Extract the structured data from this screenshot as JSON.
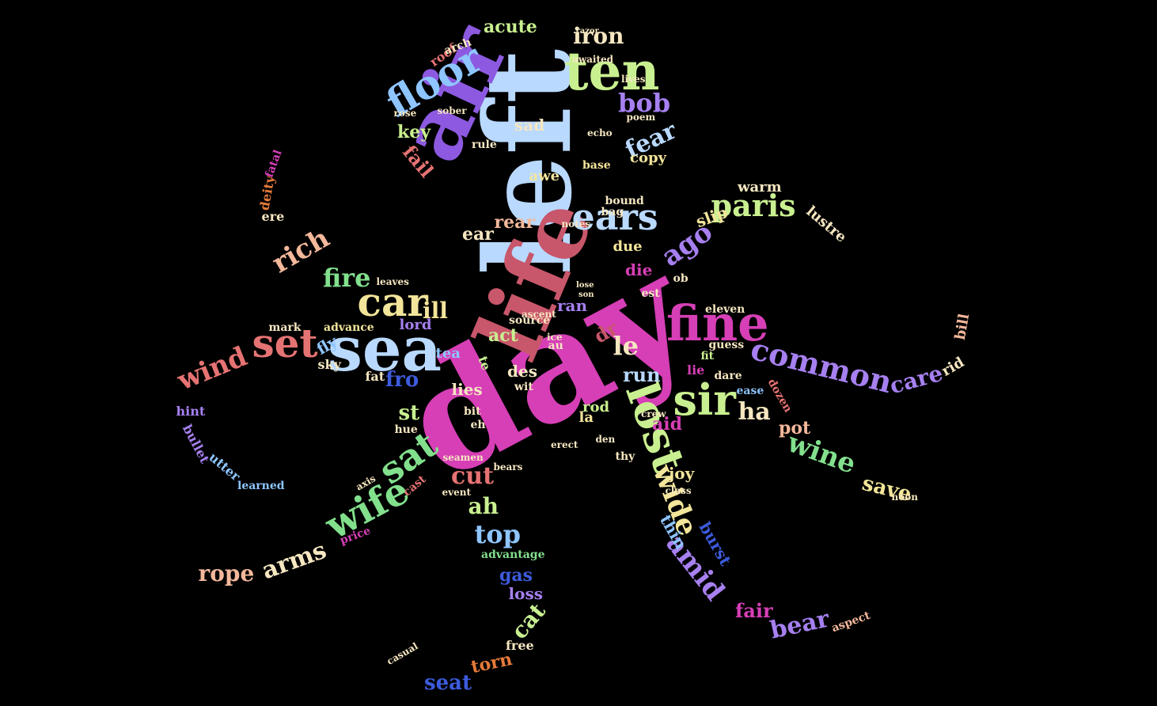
{
  "palette": {
    "pink": "#d63fb6",
    "rose": "#c8576b",
    "sky": "#b9d9ff",
    "purple": "#8d59e0",
    "lime": "#c9f090",
    "salmon": "#e67373",
    "lightblue": "#8ec5ff",
    "green": "#82e08d",
    "yellow": "#f3e59a",
    "violet": "#a680f0",
    "peach": "#f4b89b",
    "blue": "#3d5bdc",
    "cream": "#f6e7c1",
    "orange": "#e67a3a"
  },
  "words": [
    {
      "text": "day",
      "color": "#d63fb6"
    },
    {
      "text": "left",
      "color": "#b9d9ff"
    },
    {
      "text": "life",
      "color": "#c8576b"
    },
    {
      "text": "air",
      "color": "#8d59e0"
    },
    {
      "text": "ten",
      "color": "#c9f090"
    },
    {
      "text": "floor",
      "color": "#8ec5ff"
    },
    {
      "text": "sea",
      "color": "#b9d9ff"
    },
    {
      "text": "set",
      "color": "#e67373"
    },
    {
      "text": "fine",
      "color": "#d63fb6"
    },
    {
      "text": "sir",
      "color": "#c9f090"
    },
    {
      "text": "common",
      "color": "#a680f0"
    },
    {
      "text": "lost",
      "color": "#c9f090"
    },
    {
      "text": "sat",
      "color": "#82e08d"
    },
    {
      "text": "wife",
      "color": "#82e08d"
    },
    {
      "text": "car",
      "color": "#f3e59a"
    },
    {
      "text": "ears",
      "color": "#b9d9ff"
    },
    {
      "text": "paris",
      "color": "#c9f090"
    },
    {
      "text": "wind",
      "color": "#e67373"
    },
    {
      "text": "rich",
      "color": "#f4b89b"
    },
    {
      "text": "fire",
      "color": "#82e08d"
    },
    {
      "text": "ago",
      "color": "#a680f0"
    },
    {
      "text": "bob",
      "color": "#a680f0"
    },
    {
      "text": "fear",
      "color": "#b9d9ff"
    },
    {
      "text": "iron",
      "color": "#f6e7c1"
    },
    {
      "text": "acute",
      "color": "#c9f090"
    },
    {
      "text": "cut",
      "color": "#e67373"
    },
    {
      "text": "top",
      "color": "#8ec5ff"
    },
    {
      "text": "wide",
      "color": "#f3e59a"
    },
    {
      "text": "amid",
      "color": "#a680f0"
    },
    {
      "text": "rope",
      "color": "#f4b89b"
    },
    {
      "text": "arms",
      "color": "#f6e7c1"
    },
    {
      "text": "wine",
      "color": "#82e08d"
    },
    {
      "text": "ha",
      "color": "#f6e7c1"
    },
    {
      "text": "care",
      "color": "#a680f0"
    },
    {
      "text": "bear",
      "color": "#a680f0"
    },
    {
      "text": "fair",
      "color": "#d63fb6"
    },
    {
      "text": "seat",
      "color": "#3d5bdc"
    },
    {
      "text": "torn",
      "color": "#e67a3a"
    },
    {
      "text": "cat",
      "color": "#c9f090"
    },
    {
      "text": "gas",
      "color": "#3d5bdc"
    },
    {
      "text": "loss",
      "color": "#a680f0"
    },
    {
      "text": "ah",
      "color": "#c9f090"
    },
    {
      "text": "save",
      "color": "#f3e59a"
    },
    {
      "text": "st",
      "color": "#c9f090"
    },
    {
      "text": "fro",
      "color": "#3d5bdc"
    },
    {
      "text": "ill",
      "color": "#f3e59a"
    },
    {
      "text": "le",
      "color": "#f6e7c1"
    },
    {
      "text": "key",
      "color": "#c9f090"
    },
    {
      "text": "fail",
      "color": "#e67373"
    },
    {
      "text": "sad",
      "color": "#f6e7c1"
    },
    {
      "text": "ear",
      "color": "#f6e7c1"
    },
    {
      "text": "rear",
      "color": "#f4b89b"
    },
    {
      "text": "die",
      "color": "#d63fb6"
    },
    {
      "text": "run",
      "color": "#b9d9ff"
    },
    {
      "text": "aid",
      "color": "#d63fb6"
    },
    {
      "text": "act",
      "color": "#c9f090"
    },
    {
      "text": "des",
      "color": "#f6e7c1"
    },
    {
      "text": "lies",
      "color": "#f6e7c1"
    },
    {
      "text": "slip",
      "color": "#f3e59a"
    },
    {
      "text": "dr",
      "color": "#c8576b"
    },
    {
      "text": "pot",
      "color": "#f4b89b"
    },
    {
      "text": "rod",
      "color": "#c9f090"
    },
    {
      "text": "la",
      "color": "#f3e59a"
    },
    {
      "text": "ran",
      "color": "#a680f0"
    },
    {
      "text": "joy",
      "color": "#f3e59a"
    },
    {
      "text": "thin",
      "color": "#8ec5ff"
    },
    {
      "text": "burst",
      "color": "#3d5bdc"
    },
    {
      "text": "lord",
      "color": "#a680f0"
    },
    {
      "text": "due",
      "color": "#f3e59a"
    },
    {
      "text": "fly",
      "color": "#8ec5ff"
    },
    {
      "text": "tea",
      "color": "#8ec5ff"
    },
    {
      "text": "rid",
      "color": "#f6e7c1"
    },
    {
      "text": "bill",
      "color": "#f4b89b"
    },
    {
      "text": "lustre",
      "color": "#f6e7c1"
    },
    {
      "text": "warm",
      "color": "#f6e7c1"
    },
    {
      "text": "copy",
      "color": "#f3e59a"
    },
    {
      "text": "awe",
      "color": "#f3e59a"
    },
    {
      "text": "ere",
      "color": "#f6e7c1"
    },
    {
      "text": "deity",
      "color": "#e67a3a"
    },
    {
      "text": "fatal",
      "color": "#d63fb6"
    },
    {
      "text": "hint",
      "color": "#a680f0"
    },
    {
      "text": "bullet",
      "color": "#a680f0"
    },
    {
      "text": "utter",
      "color": "#8ec5ff"
    },
    {
      "text": "learned",
      "color": "#8ec5ff"
    },
    {
      "text": "sky",
      "color": "#f6e7c1"
    },
    {
      "text": "fat",
      "color": "#f6e7c1"
    },
    {
      "text": "mark",
      "color": "#f6e7c1"
    },
    {
      "text": "advance",
      "color": "#f3e59a"
    },
    {
      "text": "leaves",
      "color": "#f6e7c1"
    },
    {
      "text": "source",
      "color": "#f6e7c1"
    },
    {
      "text": "ascent",
      "color": "#f6e7c1"
    },
    {
      "text": "price",
      "color": "#d63fb6"
    },
    {
      "text": "advantage",
      "color": "#82e08d"
    },
    {
      "text": "free",
      "color": "#f6e7c1"
    },
    {
      "text": "casual",
      "color": "#f6e7c1"
    },
    {
      "text": "aspect",
      "color": "#f4b89b"
    },
    {
      "text": "dozen",
      "color": "#e67373"
    },
    {
      "text": "guess",
      "color": "#f6e7c1"
    },
    {
      "text": "eleven",
      "color": "#f6e7c1"
    },
    {
      "text": "dare",
      "color": "#f6e7c1"
    },
    {
      "text": "ease",
      "color": "#8ec5ff"
    },
    {
      "text": "lie",
      "color": "#d63fb6"
    },
    {
      "text": "fit",
      "color": "#c9f090"
    },
    {
      "text": "ob",
      "color": "#f6e7c1"
    },
    {
      "text": "est",
      "color": "#f6e7c1"
    },
    {
      "text": "bag",
      "color": "#f6e7c1"
    },
    {
      "text": "bound",
      "color": "#f6e7c1"
    },
    {
      "text": "notes",
      "color": "#f6e7c1"
    },
    {
      "text": "roof",
      "color": "#e67373"
    },
    {
      "text": "arch",
      "color": "#f6e7c1"
    },
    {
      "text": "rose",
      "color": "#f6e7c1"
    },
    {
      "text": "sober",
      "color": "#f6e7c1"
    },
    {
      "text": "poem",
      "color": "#f6e7c1"
    },
    {
      "text": "base",
      "color": "#f3e59a"
    },
    {
      "text": "rule",
      "color": "#f6e7c1"
    },
    {
      "text": "echo",
      "color": "#f6e7c1"
    },
    {
      "text": "awaited",
      "color": "#f6e7c1"
    },
    {
      "text": "lives",
      "color": "#f6e7c1"
    },
    {
      "text": "seamen",
      "color": "#f6e7c1"
    },
    {
      "text": "bears",
      "color": "#f6e7c1"
    },
    {
      "text": "event",
      "color": "#f6e7c1"
    },
    {
      "text": "cast",
      "color": "#e67373"
    },
    {
      "text": "axis",
      "color": "#f6e7c1"
    },
    {
      "text": "class",
      "color": "#f6e7c1"
    },
    {
      "text": "erect",
      "color": "#f6e7c1"
    },
    {
      "text": "den",
      "color": "#f6e7c1"
    },
    {
      "text": "thy",
      "color": "#f6e7c1"
    },
    {
      "text": "eh",
      "color": "#f6e7c1"
    },
    {
      "text": "bit",
      "color": "#f6e7c1"
    },
    {
      "text": "hue",
      "color": "#f6e7c1"
    },
    {
      "text": "wit",
      "color": "#f6e7c1"
    },
    {
      "text": "te",
      "color": "#c9f090"
    },
    {
      "text": "au",
      "color": "#f6e7c1"
    },
    {
      "text": "ice",
      "color": "#f6e7c1"
    },
    {
      "text": "crew",
      "color": "#f6e7c1"
    },
    {
      "text": "noon",
      "color": "#f6e7c1"
    },
    {
      "text": "son",
      "color": "#f6e7c1"
    },
    {
      "text": "lose",
      "color": "#f6e7c1"
    },
    {
      "text": "razor",
      "color": "#f6e7c1"
    }
  ]
}
